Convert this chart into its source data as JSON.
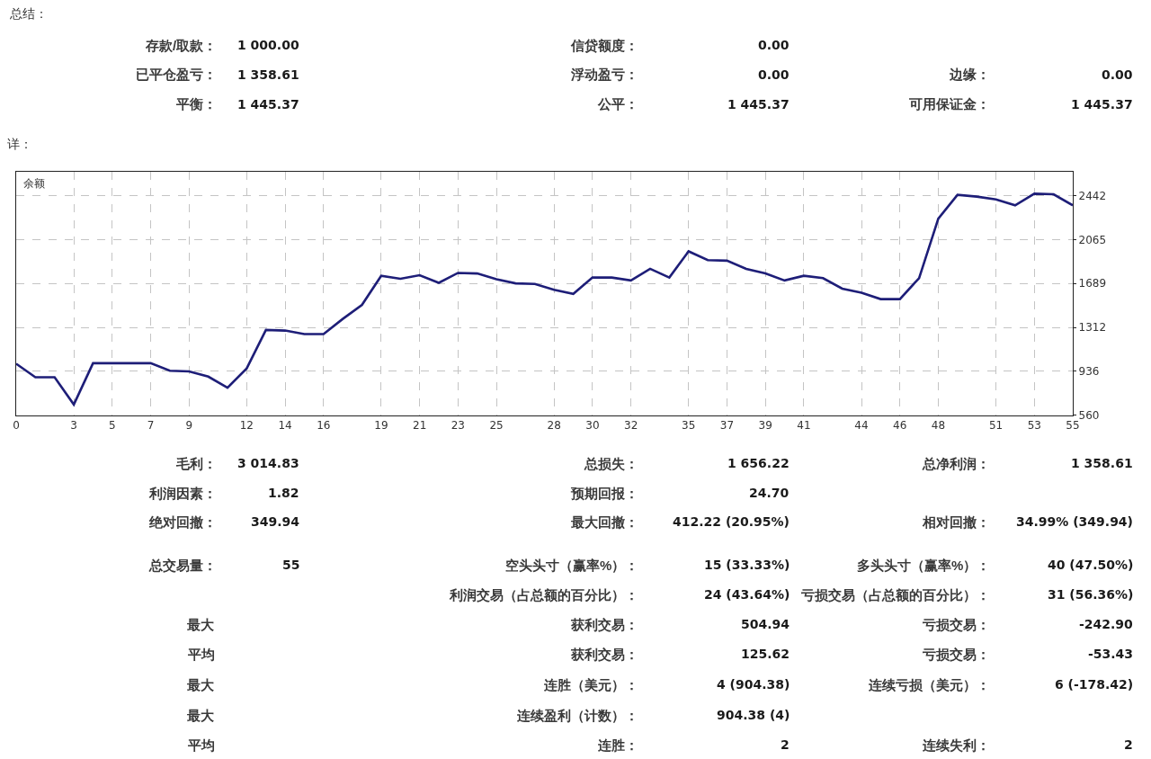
{
  "chart_data": {
    "type": "line",
    "title": "详：",
    "ylabel": "余额",
    "x": [
      0,
      1,
      2,
      3,
      4,
      5,
      6,
      7,
      8,
      9,
      10,
      11,
      12,
      13,
      14,
      15,
      16,
      17,
      18,
      19,
      20,
      21,
      22,
      23,
      24,
      25,
      26,
      27,
      28,
      29,
      30,
      31,
      32,
      33,
      34,
      35,
      36,
      37,
      38,
      39,
      40,
      41,
      42,
      43,
      44,
      45,
      46,
      47,
      48,
      49,
      50,
      51,
      52,
      53,
      54,
      55
    ],
    "series": [
      {
        "color": "#1e1e78",
        "values": [
          1000,
          884,
          884,
          650,
          1005,
          1005,
          1005,
          1005,
          940,
          935,
          890,
          795,
          960,
          1290,
          1285,
          1255,
          1255,
          1385,
          1505,
          1755,
          1730,
          1760,
          1695,
          1780,
          1775,
          1725,
          1690,
          1685,
          1635,
          1600,
          1740,
          1740,
          1715,
          1815,
          1740,
          1965,
          1890,
          1885,
          1815,
          1775,
          1715,
          1755,
          1735,
          1645,
          1610,
          1555,
          1555,
          1735,
          2245,
          2450,
          2435,
          2410,
          2360,
          2460,
          2455,
          2360
        ]
      }
    ],
    "xlim": [
      0,
      55
    ],
    "xticks": [
      0,
      3,
      5,
      7,
      9,
      12,
      14,
      16,
      19,
      21,
      23,
      25,
      28,
      30,
      32,
      35,
      37,
      39,
      41,
      44,
      46,
      48,
      51,
      53,
      55
    ],
    "ylim": [
      560,
      2648
    ],
    "yticks": [
      560,
      936,
      1312,
      1689,
      2065,
      2442
    ],
    "grid": true,
    "annotations": [
      "总结：",
      "存款/取款：",
      "1 000.00",
      "信贷额度：",
      "0.00",
      "已平仓盈亏：",
      "1 358.61",
      "浮动盈亏：",
      "0.00",
      "边缘：",
      "0.00",
      "平衡：",
      "1 445.37",
      "公平：",
      "1 445.37",
      "可用保证金：",
      "1 445.37",
      "毛利：",
      "3 014.83",
      "总损失：",
      "1 656.22",
      "总净利润：",
      "1 358.61",
      "利润因素：",
      "1.82",
      "预期回报：",
      "24.70",
      "绝对回撤：",
      "349.94",
      "最大回撤：",
      "412.22 (20.95%)",
      "相对回撤：",
      "34.99% (349.94)",
      "总交易量：",
      "55",
      "空头头寸（赢率%）：",
      "15 (33.33%)",
      "多头头寸（赢率%）：",
      "40 (47.50%)",
      "利润交易（占总额的百分比）：",
      "24 (43.64%)",
      "亏损交易（占总额的百分比）：",
      "31 (56.36%)",
      "最大",
      "获利交易：",
      "504.94",
      "亏损交易：",
      "-242.90",
      "平均",
      "获利交易：",
      "125.62",
      "亏损交易：",
      "-53.43",
      "最大",
      "连胜（美元）：",
      "4 (904.38)",
      "连续亏损（美元）：",
      "6 (-178.42)",
      "最大",
      "连续盈利（计数）：",
      "904.38 (4)",
      "平均",
      "连胜：",
      "2",
      "连续失利：",
      "2"
    ]
  }
}
